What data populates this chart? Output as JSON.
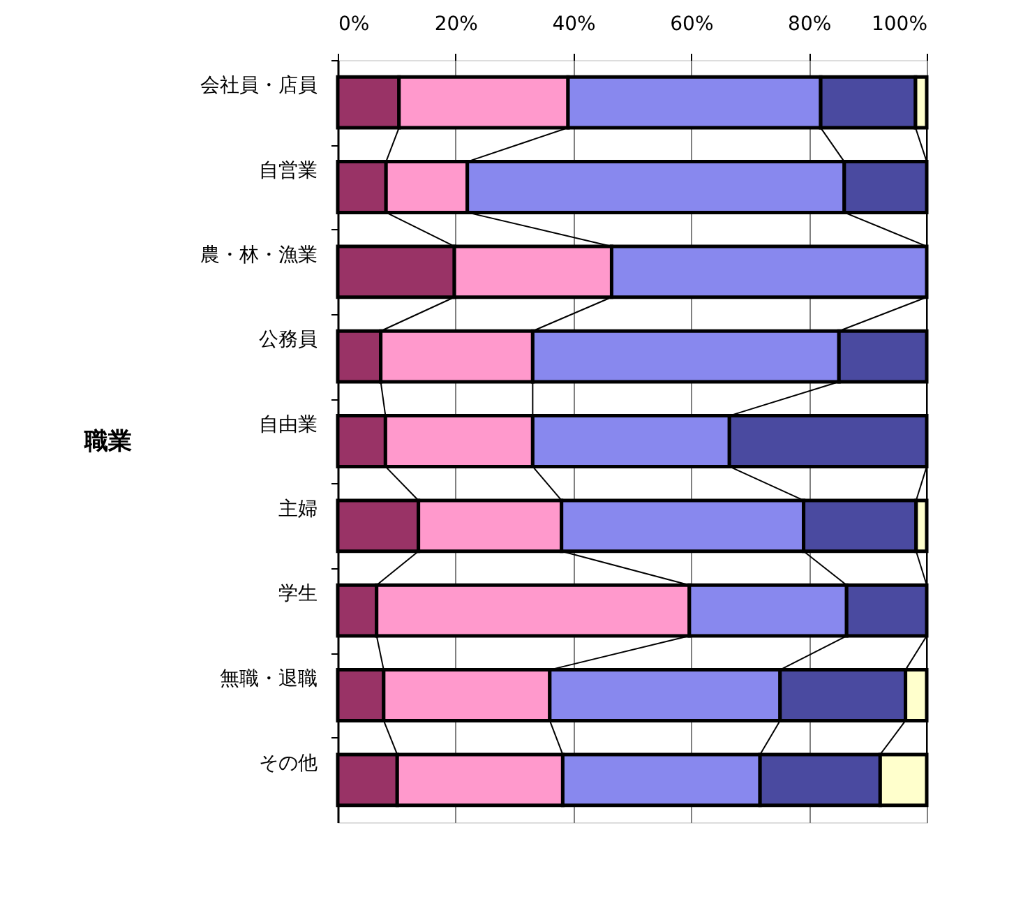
{
  "chart_data": {
    "type": "bar",
    "orientation": "horizontal",
    "stacked": true,
    "ylabel": "職業",
    "categories": [
      "会社員・店員",
      "自営業",
      "農・林・漁業",
      "公務員",
      "自由業",
      "主婦",
      "学生",
      "無職・退職",
      "その他"
    ],
    "series": [
      {
        "color": "#993366",
        "values": [
          10.4,
          8.2,
          19.8,
          7.3,
          8.1,
          13.7,
          6.6,
          7.8,
          10.1
        ]
      },
      {
        "color": "#ff99cc",
        "values": [
          28.7,
          13.8,
          26.7,
          25.8,
          25.0,
          24.3,
          53.1,
          28.2,
          28.1
        ]
      },
      {
        "color": "#8888ee",
        "values": [
          42.9,
          64.0,
          53.5,
          52.0,
          33.4,
          41.1,
          26.7,
          39.1,
          33.5
        ]
      },
      {
        "color": "#4a4aa0",
        "values": [
          16.1,
          14.0,
          0,
          14.9,
          33.5,
          19.1,
          13.6,
          21.3,
          20.4
        ]
      },
      {
        "color": "#ffffcc",
        "values": [
          1.9,
          0,
          0,
          0,
          0,
          1.8,
          0,
          3.6,
          7.9
        ]
      }
    ],
    "xlim": [
      0,
      100
    ],
    "xticks": [
      {
        "value": 0,
        "label": "0%"
      },
      {
        "value": 20,
        "label": "20%"
      },
      {
        "value": 40,
        "label": "40%"
      },
      {
        "value": 60,
        "label": "60%"
      },
      {
        "value": 80,
        "label": "80%"
      },
      {
        "value": 100,
        "label": "100%"
      }
    ],
    "grid": "x",
    "legend": false
  }
}
